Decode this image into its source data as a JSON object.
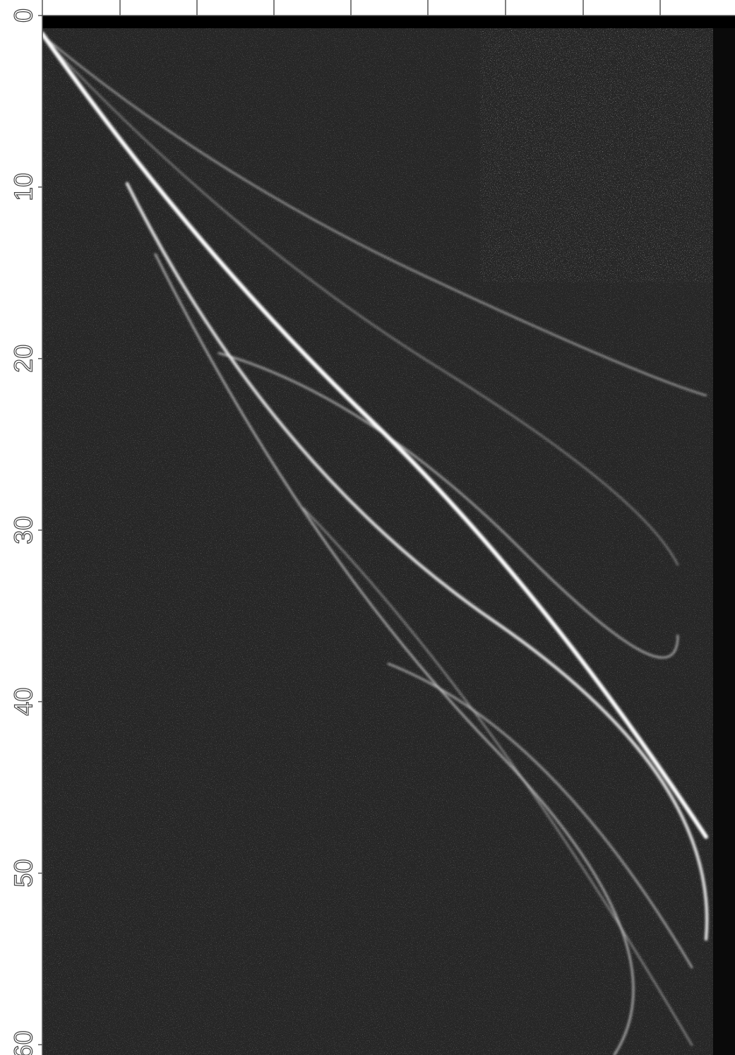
{
  "chart_data": {
    "type": "image",
    "ylim": [
      0,
      60.6
    ],
    "yticks": [
      0,
      10,
      20,
      30,
      40,
      50,
      60
    ]
  }
}
